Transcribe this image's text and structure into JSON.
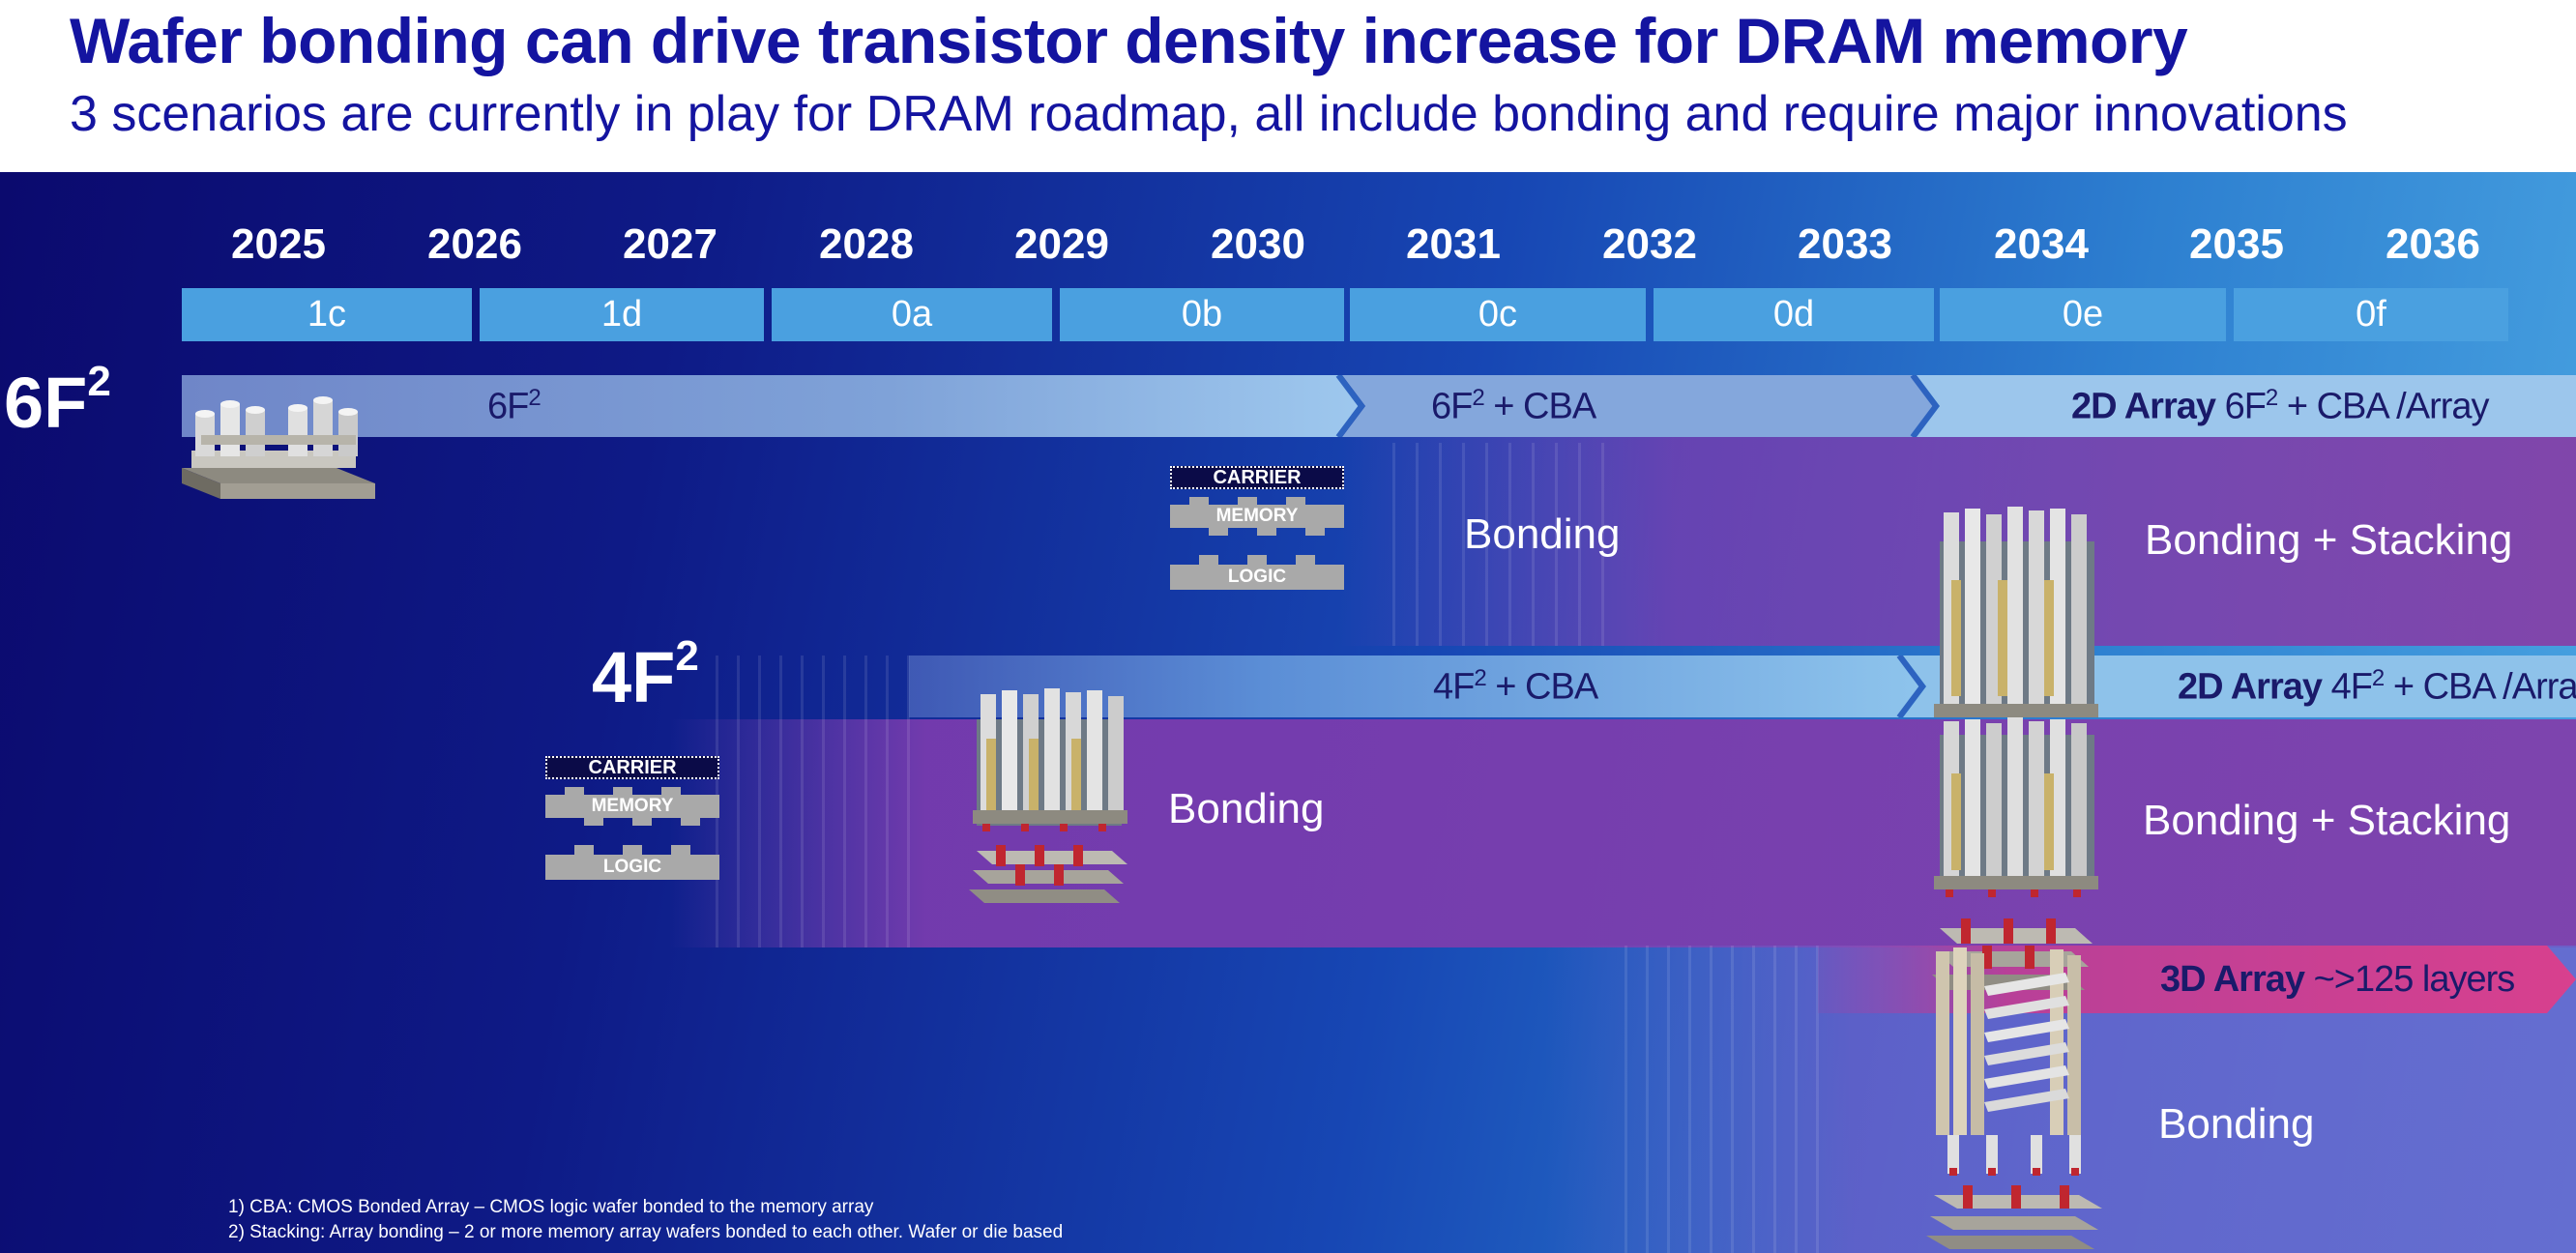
{
  "title": "Wafer bonding can drive transistor density increase for DRAM memory",
  "subtitle": "3 scenarios are currently in play for DRAM roadmap, all include bonding and require major innovations",
  "years": [
    "2025",
    "2026",
    "2027",
    "2028",
    "2029",
    "2030",
    "2031",
    "2032",
    "2033",
    "2034",
    "2035",
    "2036"
  ],
  "nodes": [
    "1c",
    "1d",
    "0a",
    "0b",
    "0c",
    "0d",
    "0e",
    "0f"
  ],
  "size_labels": {
    "six_base": "6F",
    "six_sup": "2",
    "four_base": "4F",
    "four_sup": "2"
  },
  "rows": {
    "six": {
      "seg1": {
        "base": "6F",
        "sup": "2"
      },
      "seg2": {
        "base": "6F",
        "sup": "2",
        "rest": " + CBA"
      },
      "seg3": {
        "bold": "2D Array",
        "base": " 6F",
        "sup": "2",
        "rest": " + CBA /Array"
      }
    },
    "four": {
      "seg1": {
        "base": "4F",
        "sup": "2",
        "rest": " + CBA"
      },
      "seg2": {
        "bold": "2D Array",
        "base": " 4F",
        "sup": "2",
        "rest": " + CBA /Array"
      }
    },
    "three": {
      "seg1": {
        "bold": "3D Array",
        "rest": " ~>125 layers"
      }
    }
  },
  "stack_labels": {
    "carrier": "CARRIER",
    "memory": "MEMORY",
    "logic": "LOGIC"
  },
  "captions": {
    "six_bonding": "Bonding",
    "six_stacking": "Bonding + Stacking",
    "four_bonding": "Bonding",
    "four_stacking": "Bonding + Stacking",
    "three_bonding": "Bonding"
  },
  "footnotes": [
    "1) CBA: CMOS Bonded Array – CMOS logic wafer bonded to the memory array",
    "2) Stacking: Array bonding – 2 or more memory array wafers bonded to each other. Wafer or die based"
  ]
}
